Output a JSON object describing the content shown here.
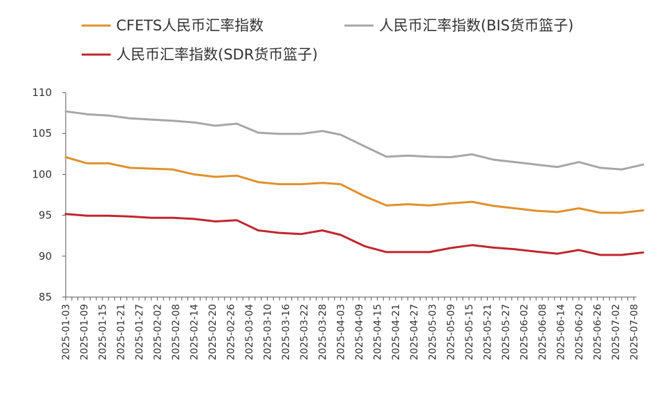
{
  "chart_data": {
    "type": "line",
    "title": "",
    "xlabel": "",
    "ylabel": "",
    "ylim": [
      85,
      110
    ],
    "yticks": [
      85,
      90,
      95,
      100,
      105,
      110
    ],
    "grid": false,
    "legend_position": "top-left",
    "x_tick_labels": [
      "2025-01-03",
      "2025-01-09",
      "2025-01-15",
      "2025-01-21",
      "2025-01-27",
      "2025-02-02",
      "2025-02-08",
      "2025-02-14",
      "2025-02-20",
      "2025-02-26",
      "2025-03-04",
      "2025-03-10",
      "2025-03-16",
      "2025-03-22",
      "2025-03-28",
      "2025-04-03",
      "2025-04-09",
      "2025-04-15",
      "2025-04-21",
      "2025-04-27",
      "2025-05-03",
      "2025-05-09",
      "2025-05-15",
      "2025-05-21",
      "2025-05-27",
      "2025-06-02",
      "2025-06-08",
      "2025-06-14",
      "2025-06-20",
      "2025-06-26",
      "2025-07-02",
      "2025-07-08"
    ],
    "x": [
      "2025-01-03",
      "2025-01-10",
      "2025-01-17",
      "2025-01-24",
      "2025-01-31",
      "2025-02-07",
      "2025-02-14",
      "2025-02-21",
      "2025-02-28",
      "2025-03-07",
      "2025-03-14",
      "2025-03-21",
      "2025-03-28",
      "2025-04-03",
      "2025-04-11",
      "2025-04-18",
      "2025-04-25",
      "2025-05-02",
      "2025-05-09",
      "2025-05-16",
      "2025-05-23",
      "2025-05-30",
      "2025-06-06",
      "2025-06-13",
      "2025-06-20",
      "2025-06-27",
      "2025-07-04",
      "2025-07-11"
    ],
    "series": [
      {
        "name": "CFETS人民币汇率指数",
        "color": "#E0902A",
        "values": [
          102.1,
          101.35,
          101.35,
          100.8,
          100.7,
          100.6,
          100.0,
          99.7,
          99.85,
          99.05,
          98.8,
          98.8,
          98.95,
          98.8,
          97.3,
          96.2,
          96.35,
          96.2,
          96.45,
          96.65,
          96.15,
          95.85,
          95.55,
          95.4,
          95.85,
          95.3,
          95.3,
          95.6
        ]
      },
      {
        "name": "人民币汇率指数(BIS货币篮子)",
        "color": "#A6A6A6",
        "values": [
          107.7,
          107.35,
          107.2,
          106.85,
          106.7,
          106.55,
          106.35,
          105.95,
          106.2,
          105.1,
          104.95,
          104.95,
          105.3,
          104.85,
          103.4,
          102.15,
          102.3,
          102.15,
          102.1,
          102.45,
          101.8,
          101.5,
          101.2,
          100.9,
          101.5,
          100.8,
          100.6,
          101.2
        ]
      },
      {
        "name": "人民币汇率指数(SDR货币篮子)",
        "color": "#C0262D",
        "values": [
          95.15,
          94.95,
          94.95,
          94.85,
          94.7,
          94.7,
          94.55,
          94.25,
          94.4,
          93.15,
          92.85,
          92.7,
          93.15,
          92.6,
          91.2,
          90.5,
          90.5,
          90.5,
          91.0,
          91.35,
          91.05,
          90.85,
          90.55,
          90.3,
          90.75,
          90.15,
          90.15,
          90.45
        ]
      }
    ]
  }
}
